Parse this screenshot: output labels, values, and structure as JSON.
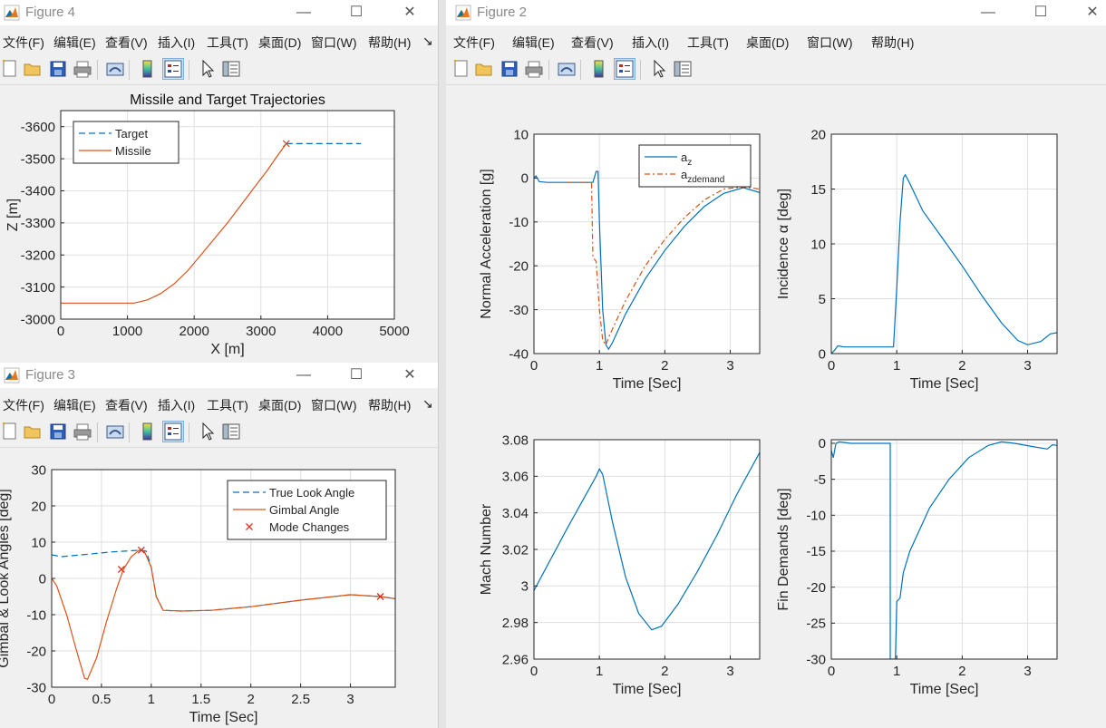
{
  "menu": [
    "文件(F)",
    "编辑(E)",
    "查看(V)",
    "插入(I)",
    "工具(T)",
    "桌面(D)",
    "窗口(W)",
    "帮助(H)"
  ],
  "menu_overflow": "↘",
  "icons": [
    "new-figure-icon",
    "open-file-icon",
    "save-icon",
    "print-icon",
    "link-plot-icon",
    "insert-colorbar-icon",
    "insert-legend-icon",
    "edit-plot-arrow-icon",
    "property-inspector-icon"
  ],
  "window_controls": {
    "minimize": "—",
    "maximize": "☐",
    "close": "✕"
  },
  "windows": {
    "fig4": {
      "title": "Figure 4"
    },
    "fig3": {
      "title": "Figure 3"
    },
    "fig2": {
      "title": "Figure 2"
    }
  },
  "colors": {
    "blue": "#0072bd",
    "orange": "#d95319",
    "marker": "#e03020",
    "grid": "#dfdfdf"
  },
  "chart_data": [
    {
      "id": "traj",
      "type": "line",
      "title": "Missile and Target Trajectories",
      "xlabel": "X [m]",
      "ylabel": "Z [m]",
      "xlim": [
        0,
        5000
      ],
      "ylim": [
        -3000,
        -3650
      ],
      "y_reversed": true,
      "xticks": [
        0,
        1000,
        2000,
        3000,
        4000,
        5000
      ],
      "yticks": [
        -3600,
        -3500,
        -3400,
        -3300,
        -3200,
        -3100,
        -3000
      ],
      "legend": {
        "location": "top-left"
      },
      "series": [
        {
          "name": "Target",
          "color": "blue",
          "dash": "7,4",
          "points": [
            [
              3380,
              -3547
            ],
            [
              4500,
              -3547
            ]
          ]
        },
        {
          "name": "Missile",
          "color": "orange",
          "points": [
            [
              0,
              -3050
            ],
            [
              1100,
              -3050
            ],
            [
              1300,
              -3060
            ],
            [
              1500,
              -3080
            ],
            [
              1700,
              -3110
            ],
            [
              1900,
              -3150
            ],
            [
              2100,
              -3200
            ],
            [
              2300,
              -3250
            ],
            [
              2500,
              -3300
            ],
            [
              2700,
              -3355
            ],
            [
              2900,
              -3410
            ],
            [
              3100,
              -3465
            ],
            [
              3250,
              -3510
            ],
            [
              3380,
              -3547
            ]
          ]
        }
      ],
      "markers": [
        {
          "x": 3380,
          "y": -3547,
          "glyph": "x",
          "color": "orange"
        }
      ]
    },
    {
      "id": "gimbal",
      "type": "line",
      "title": "",
      "xlabel": "Time [Sec]",
      "ylabel": "Gimbal & Look Angles [deg]",
      "xlim": [
        0,
        3.45
      ],
      "ylim": [
        -30,
        30
      ],
      "xticks": [
        0,
        0.5,
        1,
        1.5,
        2,
        2.5,
        3
      ],
      "xtick_labels": [
        "0",
        "0.5",
        "1",
        "1.5",
        "2",
        "2.5",
        "3"
      ],
      "yticks": [
        -30,
        -20,
        -10,
        0,
        10,
        20,
        30
      ],
      "legend": {
        "location": "top-right"
      },
      "series": [
        {
          "name": "True Look Angle",
          "color": "blue",
          "dash": "7,4",
          "points": [
            [
              0,
              6.5
            ],
            [
              0.1,
              6
            ],
            [
              0.3,
              6.5
            ],
            [
              0.6,
              7.3
            ],
            [
              0.9,
              7.8
            ],
            [
              0.95,
              7.5
            ],
            [
              1.0,
              3
            ],
            [
              1.05,
              -5
            ],
            [
              1.12,
              -8.8
            ],
            [
              1.3,
              -9
            ],
            [
              1.6,
              -8.8
            ],
            [
              2.0,
              -7.8
            ],
            [
              2.5,
              -6
            ],
            [
              3.0,
              -4.5
            ],
            [
              3.3,
              -5
            ],
            [
              3.45,
              -5.6
            ]
          ]
        },
        {
          "name": "Gimbal Angle",
          "color": "orange",
          "points": [
            [
              0,
              0
            ],
            [
              0.05,
              -2
            ],
            [
              0.15,
              -10
            ],
            [
              0.25,
              -20
            ],
            [
              0.33,
              -27.5
            ],
            [
              0.36,
              -27.8
            ],
            [
              0.45,
              -22
            ],
            [
              0.55,
              -12
            ],
            [
              0.65,
              -3
            ],
            [
              0.72,
              2.5
            ],
            [
              0.8,
              6
            ],
            [
              0.88,
              7.8
            ],
            [
              0.93,
              7.5
            ],
            [
              1.0,
              3
            ],
            [
              1.05,
              -5
            ],
            [
              1.12,
              -8.8
            ],
            [
              1.3,
              -9
            ],
            [
              1.6,
              -8.8
            ],
            [
              2.0,
              -7.8
            ],
            [
              2.5,
              -6
            ],
            [
              3.0,
              -4.5
            ],
            [
              3.3,
              -5
            ],
            [
              3.45,
              -5.6
            ]
          ]
        }
      ],
      "markers_legend": {
        "name": "Mode Changes",
        "color": "marker"
      },
      "markers": [
        {
          "x": 0.7,
          "y": 2.5,
          "glyph": "x",
          "color": "marker"
        },
        {
          "x": 0.9,
          "y": 7.8,
          "glyph": "x",
          "color": "marker"
        },
        {
          "x": 3.3,
          "y": -5,
          "glyph": "x",
          "color": "marker"
        }
      ]
    },
    {
      "id": "accel",
      "type": "line",
      "title": "",
      "xlabel": "Time [Sec]",
      "ylabel": "Normal Acceleration [g]",
      "xlim": [
        0,
        3.45
      ],
      "ylim": [
        -40,
        10
      ],
      "xticks": [
        0,
        1,
        2,
        3
      ],
      "yticks": [
        -40,
        -30,
        -20,
        -10,
        0,
        10
      ],
      "legend": {
        "location": "top-right"
      },
      "series": [
        {
          "name": "a_z",
          "legend_main": "a",
          "legend_sub": "z",
          "color": "blue",
          "points": [
            [
              0,
              0
            ],
            [
              0.03,
              0.5
            ],
            [
              0.08,
              -0.8
            ],
            [
              0.2,
              -1
            ],
            [
              0.5,
              -1
            ],
            [
              0.9,
              -1
            ],
            [
              0.95,
              1.5
            ],
            [
              0.98,
              1.5
            ],
            [
              1.0,
              -10
            ],
            [
              1.05,
              -30
            ],
            [
              1.1,
              -38
            ],
            [
              1.14,
              -39
            ],
            [
              1.2,
              -37.5
            ],
            [
              1.4,
              -31
            ],
            [
              1.7,
              -23
            ],
            [
              2.0,
              -16.5
            ],
            [
              2.3,
              -11
            ],
            [
              2.6,
              -6.5
            ],
            [
              2.9,
              -3.5
            ],
            [
              3.2,
              -2.2
            ],
            [
              3.45,
              -3.3
            ]
          ]
        },
        {
          "name": "a_zdemand",
          "legend_main": "a",
          "legend_sub": "zdemand",
          "color": "orange",
          "dash": "6,3,2,3",
          "points": [
            [
              0.5,
              -1
            ],
            [
              0.88,
              -1
            ],
            [
              0.9,
              -18
            ],
            [
              0.95,
              -19
            ],
            [
              1.0,
              -30
            ],
            [
              1.05,
              -37
            ],
            [
              1.1,
              -38
            ],
            [
              1.15,
              -36
            ],
            [
              1.4,
              -28
            ],
            [
              1.7,
              -20
            ],
            [
              2.0,
              -14
            ],
            [
              2.3,
              -9
            ],
            [
              2.6,
              -5
            ],
            [
              2.9,
              -2.5
            ],
            [
              3.2,
              -2
            ],
            [
              3.45,
              -2.5
            ]
          ]
        }
      ]
    },
    {
      "id": "incidence",
      "type": "line",
      "title": "",
      "xlabel": "Time [Sec]",
      "ylabel": "Incidence α [deg]",
      "xlim": [
        0,
        3.45
      ],
      "ylim": [
        0,
        20
      ],
      "xticks": [
        0,
        1,
        2,
        3
      ],
      "yticks": [
        0,
        5,
        10,
        15,
        20
      ],
      "series": [
        {
          "name": "",
          "color": "blue",
          "points": [
            [
              0,
              0
            ],
            [
              0.05,
              0.3
            ],
            [
              0.1,
              0.7
            ],
            [
              0.2,
              0.6
            ],
            [
              0.5,
              0.6
            ],
            [
              0.95,
              0.6
            ],
            [
              1.0,
              6
            ],
            [
              1.05,
              12
            ],
            [
              1.1,
              16
            ],
            [
              1.13,
              16.3
            ],
            [
              1.2,
              15.5
            ],
            [
              1.4,
              13
            ],
            [
              1.7,
              10.5
            ],
            [
              2.0,
              8
            ],
            [
              2.3,
              5.3
            ],
            [
              2.6,
              2.8
            ],
            [
              2.85,
              1.2
            ],
            [
              3.0,
              0.8
            ],
            [
              3.2,
              1.1
            ],
            [
              3.35,
              1.8
            ],
            [
              3.45,
              1.9
            ]
          ]
        }
      ]
    },
    {
      "id": "mach",
      "type": "line",
      "title": "",
      "xlabel": "Time [Sec]",
      "ylabel": "Mach Number",
      "xlim": [
        0,
        3.45
      ],
      "ylim": [
        2.96,
        3.08
      ],
      "xticks": [
        0,
        1,
        2,
        3
      ],
      "yticks": [
        2.96,
        2.98,
        3.0,
        3.02,
        3.04,
        3.06,
        3.08
      ],
      "ytick_labels": [
        "2.96",
        "2.98",
        "3",
        "3.02",
        "3.04",
        "3.06",
        "3.08"
      ],
      "series": [
        {
          "name": "",
          "color": "blue",
          "points": [
            [
              0,
              2.9975
            ],
            [
              0.5,
              3.031
            ],
            [
              0.95,
              3.06
            ],
            [
              1.0,
              3.064
            ],
            [
              1.05,
              3.061
            ],
            [
              1.2,
              3.035
            ],
            [
              1.4,
              3.005
            ],
            [
              1.6,
              2.985
            ],
            [
              1.8,
              2.976
            ],
            [
              1.95,
              2.978
            ],
            [
              2.2,
              2.99
            ],
            [
              2.5,
              3.008
            ],
            [
              2.8,
              3.028
            ],
            [
              3.1,
              3.05
            ],
            [
              3.45,
              3.073
            ]
          ]
        }
      ]
    },
    {
      "id": "fin",
      "type": "line",
      "title": "",
      "xlabel": "Time [Sec]",
      "ylabel": "Fin Demands [deg]",
      "xlim": [
        0,
        3.45
      ],
      "ylim": [
        -30,
        0.5
      ],
      "xticks": [
        0,
        1,
        2,
        3
      ],
      "yticks": [
        -30,
        -25,
        -20,
        -15,
        -10,
        -5,
        0
      ],
      "series": [
        {
          "name": "",
          "color": "blue",
          "points": [
            [
              0,
              -1
            ],
            [
              0.03,
              -2
            ],
            [
              0.07,
              0
            ],
            [
              0.12,
              0.2
            ],
            [
              0.3,
              0
            ],
            [
              0.9,
              0
            ],
            [
              0.9,
              -30
            ],
            [
              0.98,
              -30
            ],
            [
              1.0,
              -22
            ],
            [
              1.05,
              -21.5
            ],
            [
              1.1,
              -18
            ],
            [
              1.2,
              -15
            ],
            [
              1.5,
              -9
            ],
            [
              1.8,
              -5
            ],
            [
              2.1,
              -2
            ],
            [
              2.4,
              -0.3
            ],
            [
              2.6,
              0.2
            ],
            [
              2.8,
              0
            ],
            [
              3.1,
              -0.5
            ],
            [
              3.3,
              -0.8
            ],
            [
              3.38,
              -0.2
            ],
            [
              3.45,
              -0.3
            ]
          ]
        }
      ]
    }
  ]
}
